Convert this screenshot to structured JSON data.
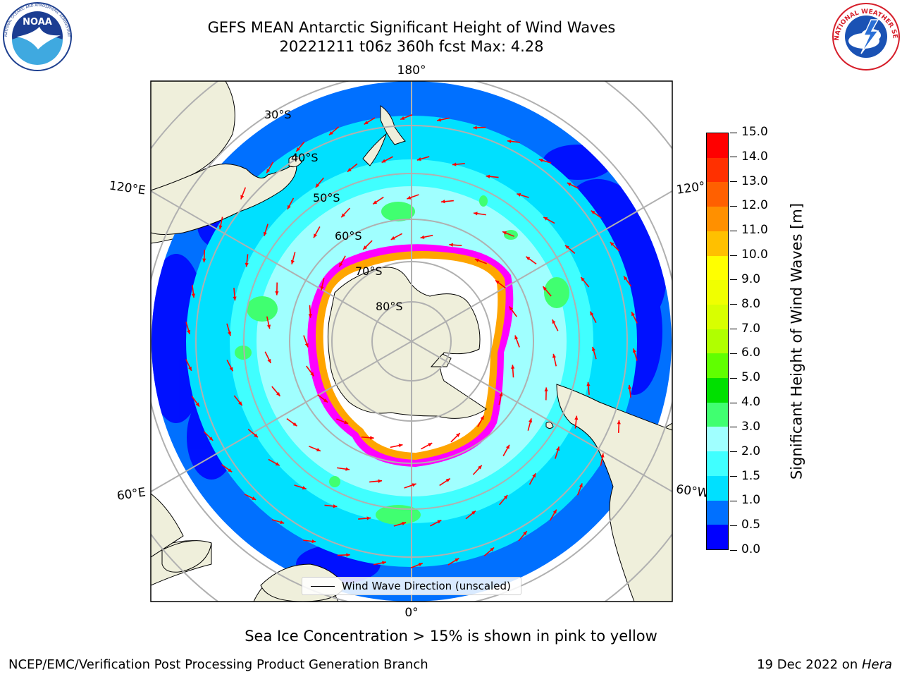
{
  "title": {
    "line1": "GEFS MEAN Antarctic Significant Height of Wind Waves",
    "line2": "20221211 t06z 360h fcst   Max: 4.28"
  },
  "map": {
    "projection": "south-polar-stereographic",
    "longitude_labels": {
      "top": "180°",
      "bottom": "0°",
      "left_upper": "120°E",
      "left_lower": "60°E",
      "right_upper": "120°",
      "right_lower": "60°W"
    },
    "latitude_labels": [
      "30°S",
      "40°S",
      "50°S",
      "60°S",
      "70°S",
      "80°S"
    ],
    "arrow_color": "#ff0000",
    "land_color": "#efefdb",
    "sea_ice_colors": [
      "#ff00ff",
      "#ffa500",
      "#ffffff"
    ]
  },
  "colorbar": {
    "title": "Significant Height of Wind Waves [m]",
    "levels": [
      0.0,
      0.5,
      1.0,
      1.5,
      2.0,
      3.0,
      4.0,
      5.0,
      6.0,
      7.0,
      8.0,
      9.0,
      10.0,
      11.0,
      12.0,
      13.0,
      14.0,
      15.0
    ],
    "labels": [
      "0.0",
      "0.5",
      "1.0",
      "1.5",
      "2.0",
      "3.0",
      "4.0",
      "5.0",
      "6.0",
      "7.0",
      "8.0",
      "9.0",
      "10.0",
      "11.0",
      "12.0",
      "13.0",
      "14.0",
      "15.0"
    ],
    "colors": [
      "#0000ff",
      "#0070ff",
      "#00e0ff",
      "#40ffff",
      "#a0ffff",
      "#40ff70",
      "#00e000",
      "#60ff00",
      "#b0ff00",
      "#d8ff00",
      "#f0ff00",
      "#ffff00",
      "#ffc000",
      "#ff9000",
      "#ff6000",
      "#ff3000",
      "#ff0000"
    ]
  },
  "legend": {
    "label": "Wind Wave Direction (unscaled)"
  },
  "notes": {
    "ice": "Sea Ice Concentration > 15% is shown in pink to yellow"
  },
  "footer": {
    "left": "NCEP/EMC/Verification Post Processing Product Generation Branch",
    "date": "19 Dec 2022 on ",
    "machine": "Hera"
  },
  "logos": {
    "noaa": "NOAA",
    "nws": "NATIONAL WEATHER SERVICE"
  }
}
